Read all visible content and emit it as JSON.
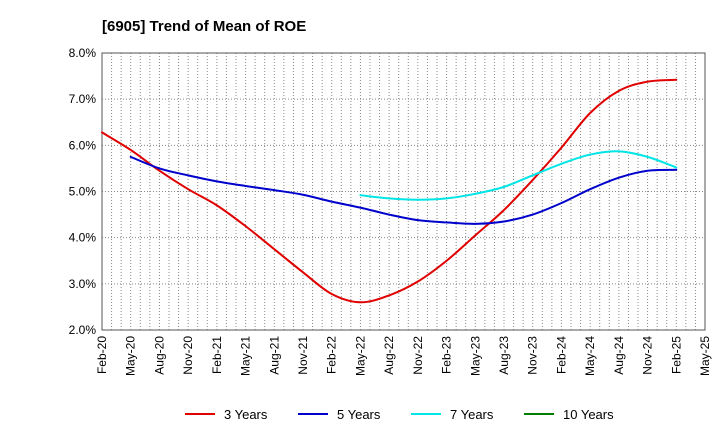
{
  "chart_data": {
    "type": "line",
    "title": "[6905]  Trend of Mean of ROE",
    "xlabel": "",
    "ylabel": "",
    "ylim": [
      2.0,
      8.0
    ],
    "y_ticks": [
      "2.0%",
      "3.0%",
      "4.0%",
      "5.0%",
      "6.0%",
      "7.0%",
      "8.0%"
    ],
    "y_tick_values": [
      2.0,
      3.0,
      4.0,
      5.0,
      6.0,
      7.0,
      8.0
    ],
    "grid": "dotted",
    "categories": [
      "Feb-20",
      "May-20",
      "Aug-20",
      "Nov-20",
      "Feb-21",
      "May-21",
      "Aug-21",
      "Nov-21",
      "Feb-22",
      "May-22",
      "Aug-22",
      "Nov-22",
      "Feb-23",
      "May-23",
      "Aug-23",
      "Nov-23",
      "Feb-24",
      "May-24",
      "Aug-24",
      "Nov-24",
      "Feb-25",
      "May-25"
    ],
    "series": [
      {
        "name": "3 Years",
        "color": "#e00000",
        "values": [
          6.28,
          5.9,
          5.45,
          5.05,
          4.7,
          4.25,
          3.75,
          3.25,
          2.78,
          2.6,
          2.75,
          3.05,
          3.5,
          4.05,
          4.6,
          5.25,
          5.95,
          6.7,
          7.18,
          7.38,
          7.42,
          null
        ]
      },
      {
        "name": "5 Years",
        "color": "#0000cc",
        "values": [
          null,
          5.75,
          5.5,
          5.35,
          5.22,
          5.12,
          5.03,
          4.93,
          4.78,
          4.65,
          4.5,
          4.38,
          4.33,
          4.3,
          4.35,
          4.5,
          4.75,
          5.05,
          5.3,
          5.45,
          5.47,
          null
        ]
      },
      {
        "name": "7 Years",
        "color": "#00e5e5",
        "values": [
          null,
          null,
          null,
          null,
          null,
          null,
          null,
          null,
          null,
          4.92,
          4.85,
          4.82,
          4.85,
          4.95,
          5.1,
          5.35,
          5.6,
          5.8,
          5.87,
          5.75,
          5.52,
          null
        ]
      },
      {
        "name": "10 Years",
        "color": "#008000",
        "values": [
          null,
          null,
          null,
          null,
          null,
          null,
          null,
          null,
          null,
          null,
          null,
          null,
          null,
          null,
          null,
          null,
          null,
          null,
          null,
          null,
          null,
          null
        ]
      }
    ],
    "legend": "bottom"
  }
}
